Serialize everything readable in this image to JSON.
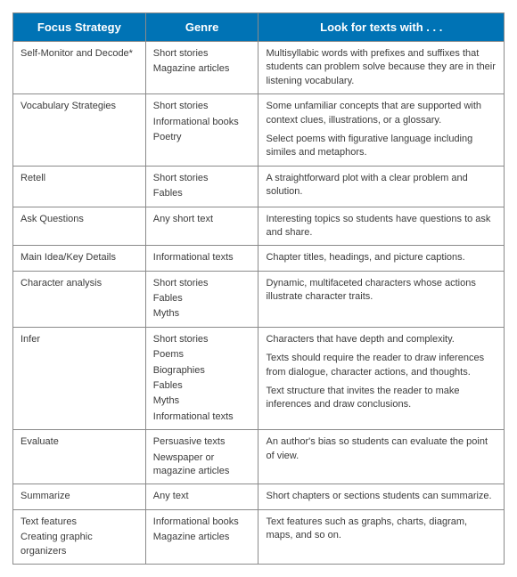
{
  "table": {
    "header_bg": "#0073b5",
    "header_fg": "#ffffff",
    "border_color": "#8a8a8a",
    "text_color": "#3b3b3b",
    "columns": [
      {
        "key": "strategy",
        "label": "Focus Strategy"
      },
      {
        "key": "genre",
        "label": "Genre"
      },
      {
        "key": "look",
        "label": "Look for texts with . . ."
      }
    ],
    "rows": [
      {
        "strategy": [
          "Self-Monitor and Decode*"
        ],
        "genre": [
          "Short stories",
          "Magazine articles"
        ],
        "look": [
          "Multisyllabic words with prefixes and suffixes that students can problem solve because they are in their listening vocabulary."
        ]
      },
      {
        "strategy": [
          "Vocabulary Strategies"
        ],
        "genre": [
          "Short stories",
          "Informational books",
          "Poetry"
        ],
        "look": [
          "Some unfamiliar concepts that are supported with context clues, illustrations, or a glossary.",
          "Select poems with figurative language including similes and metaphors."
        ]
      },
      {
        "strategy": [
          "Retell"
        ],
        "genre": [
          "Short stories",
          "Fables"
        ],
        "look": [
          "A straightforward plot with a clear problem and solution."
        ]
      },
      {
        "strategy": [
          "Ask Questions"
        ],
        "genre": [
          "Any short text"
        ],
        "look": [
          "Interesting topics so students have questions to ask and share."
        ]
      },
      {
        "strategy": [
          "Main Idea/Key Details"
        ],
        "genre": [
          "Informational texts"
        ],
        "look": [
          "Chapter titles, headings, and picture captions."
        ]
      },
      {
        "strategy": [
          "Character analysis"
        ],
        "genre": [
          "Short stories",
          "Fables",
          "Myths"
        ],
        "look": [
          "Dynamic, multifaceted characters whose actions illustrate character traits."
        ]
      },
      {
        "strategy": [
          "Infer"
        ],
        "genre": [
          "Short stories",
          "Poems",
          "Biographies",
          "Fables",
          "Myths",
          "Informational texts"
        ],
        "look": [
          "Characters that have depth and complexity.",
          "Texts should require the reader to draw inferences from dialogue, character actions, and thoughts.",
          "Text structure that invites the reader to make inferences and draw conclusions."
        ]
      },
      {
        "strategy": [
          "Evaluate"
        ],
        "genre": [
          "Persuasive texts",
          "Newspaper or magazine articles"
        ],
        "look": [
          "An author's bias so students can evaluate the point of view."
        ]
      },
      {
        "strategy": [
          "Summarize"
        ],
        "genre": [
          "Any text"
        ],
        "look": [
          "Short chapters or sections students can summarize."
        ]
      },
      {
        "strategy": [
          "Text features",
          "Creating graphic organizers"
        ],
        "genre": [
          "Informational books",
          "Magazine articles"
        ],
        "look": [
          "Text features such as graphs, charts, diagram, maps, and so on."
        ]
      }
    ]
  }
}
